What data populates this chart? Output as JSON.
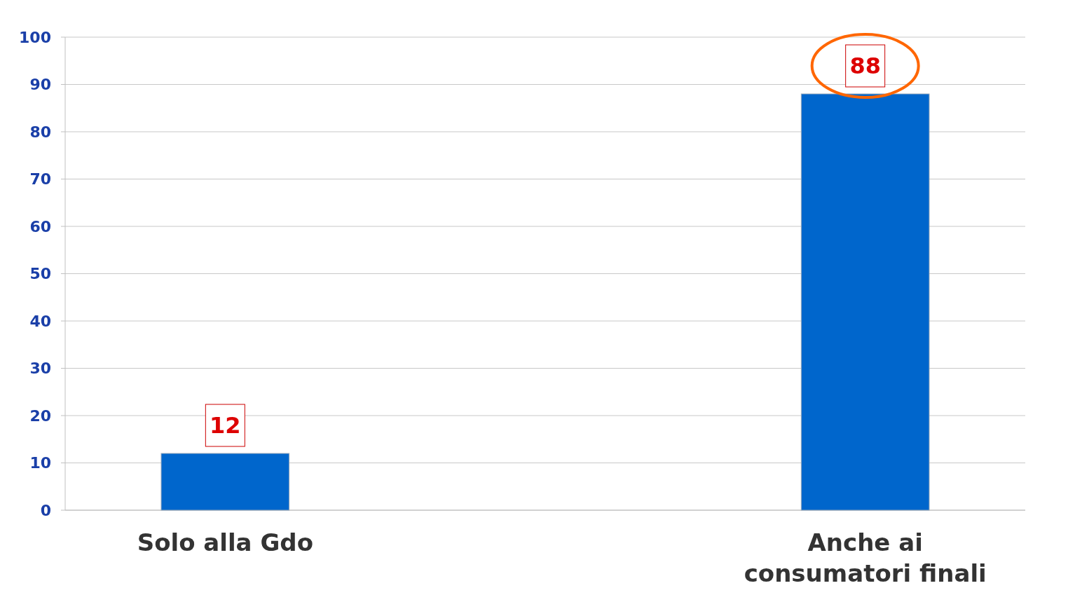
{
  "chart_data": {
    "type": "bar",
    "categories": [
      "Solo alla Gdo",
      "Anche ai consumatori finali"
    ],
    "values": [
      12,
      88
    ],
    "color": "#0066cc",
    "ylim": [
      0,
      100
    ],
    "yticks": [
      0,
      10,
      20,
      30,
      40,
      50,
      60,
      70,
      80,
      90,
      100
    ],
    "grid": "y",
    "data_labels": true
  }
}
